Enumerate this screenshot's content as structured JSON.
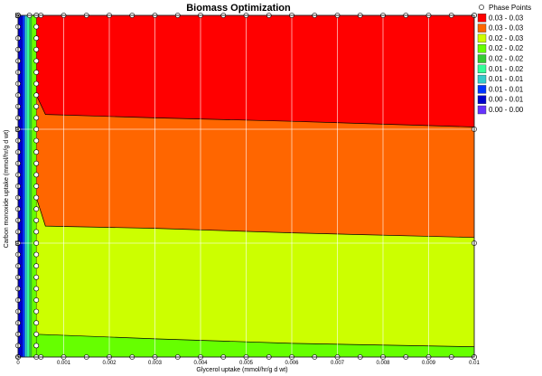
{
  "chart_data": {
    "type": "heatmap",
    "title": "Biomass Optimization",
    "xlabel": "Glycerol uptake (mmol/hr/g d wt)",
    "ylabel": "Carbon monoxide uptake (mmol/hr/g d wt)",
    "xlim": [
      0,
      0.01
    ],
    "ylim": [
      0,
      30
    ],
    "x_ticks": [
      "0",
      "0.001",
      "0.002",
      "0.003",
      "0.004",
      "0.005",
      "0.006",
      "0.007",
      "0.008",
      "0.009",
      "0.01"
    ],
    "y_ticks": [
      "0",
      "10",
      "20",
      "30"
    ],
    "grid": true,
    "legend_position": "right",
    "legend": [
      {
        "label": "Phase Points",
        "marker": "circle"
      },
      {
        "label": "0.03 - 0.03",
        "color": "#ff0000"
      },
      {
        "label": "0.03 - 0.03",
        "color": "#ff6600"
      },
      {
        "label": "0.02 - 0.03",
        "color": "#ccff00"
      },
      {
        "label": "0.02 - 0.02",
        "color": "#66ff00"
      },
      {
        "label": "0.02 - 0.02",
        "color": "#33cc33"
      },
      {
        "label": "0.01 - 0.02",
        "color": "#33ff99"
      },
      {
        "label": "0.01 - 0.01",
        "color": "#33cccc"
      },
      {
        "label": "0.01 - 0.01",
        "color": "#0033ff"
      },
      {
        "label": "0.00 - 0.01",
        "color": "#0000cc"
      },
      {
        "label": "0.00 - 0.00",
        "color": "#6633ff"
      }
    ],
    "vertical_bands": [
      {
        "x0": 0.0,
        "x1": 0.0001,
        "color": "#0000cc"
      },
      {
        "x0": 0.0001,
        "x1": 0.00015,
        "color": "#0033ff"
      },
      {
        "x0": 0.00015,
        "x1": 0.0002,
        "color": "#33cccc"
      },
      {
        "x0": 0.0002,
        "x1": 0.00025,
        "color": "#33ff99"
      },
      {
        "x0": 0.00025,
        "x1": 0.0003,
        "color": "#33cc33"
      },
      {
        "x0": 0.0003,
        "x1": 0.0004,
        "color": "#66ff00"
      }
    ],
    "regions": [
      {
        "color": "#66ff00",
        "lower_y": [
          [
            0.0004,
            0
          ],
          [
            0.01,
            0
          ]
        ],
        "upper_y": [
          [
            0.0004,
            2.0
          ],
          [
            0.003,
            1.6
          ],
          [
            0.006,
            1.2
          ],
          [
            0.01,
            0.9
          ]
        ]
      },
      {
        "color": "#ccff00",
        "lower_y": [
          [
            0.0004,
            2.0
          ],
          [
            0.003,
            1.6
          ],
          [
            0.006,
            1.2
          ],
          [
            0.01,
            0.9
          ]
        ],
        "upper_y": [
          [
            0.0004,
            14
          ],
          [
            0.0006,
            11.5
          ],
          [
            0.003,
            11.3
          ],
          [
            0.006,
            10.9
          ],
          [
            0.01,
            10.5
          ]
        ]
      },
      {
        "color": "#ff6600",
        "lower_y": [
          [
            0.0004,
            14
          ],
          [
            0.0006,
            11.5
          ],
          [
            0.003,
            11.3
          ],
          [
            0.006,
            10.9
          ],
          [
            0.01,
            10.5
          ]
        ],
        "upper_y": [
          [
            0.0004,
            23
          ],
          [
            0.0006,
            21.3
          ],
          [
            0.003,
            21.0
          ],
          [
            0.006,
            20.7
          ],
          [
            0.01,
            20.2
          ]
        ]
      },
      {
        "color": "#ff0000",
        "lower_y": [
          [
            0.0004,
            23
          ],
          [
            0.0006,
            21.3
          ],
          [
            0.003,
            21.0
          ],
          [
            0.006,
            20.7
          ],
          [
            0.01,
            20.2
          ]
        ],
        "upper_y": [
          [
            0.0004,
            30
          ],
          [
            0.01,
            30
          ]
        ]
      }
    ],
    "phase_points": {
      "x": [
        0,
        0.0005,
        0.001,
        0.0015,
        0.002,
        0.0025,
        0.003,
        0.0035,
        0.004,
        0.0045,
        0.005,
        0.0055,
        0.006,
        0.0065,
        0.007,
        0.0075,
        0.008,
        0.0085,
        0.009,
        0.0095,
        0.01
      ],
      "y": [
        0,
        1,
        2,
        3,
        4,
        5,
        6,
        7,
        8,
        9,
        10,
        11,
        12,
        13,
        14,
        15,
        16,
        17,
        18,
        19,
        20,
        21,
        22,
        23,
        24,
        25,
        26,
        27,
        28,
        29,
        30
      ],
      "extra_top_x": [
        0.00025,
        0.0004
      ],
      "right_edge_y": [
        0,
        10,
        20,
        30
      ]
    }
  }
}
